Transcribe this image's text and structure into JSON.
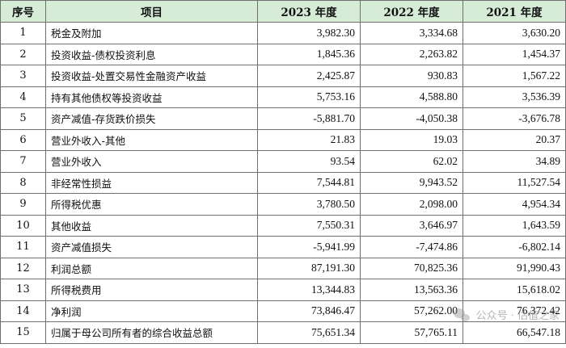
{
  "headers": {
    "seq": "序号",
    "item": "项目",
    "y2023": "2023 年度",
    "y2022": "2022 年度",
    "y2021": "2021 年度"
  },
  "rows": [
    {
      "seq": "1",
      "item": "税金及附加",
      "y2023": "3,982.30",
      "y2022": "3,334.68",
      "y2021": "3,630.20"
    },
    {
      "seq": "2",
      "item": "投资收益-债权投资利息",
      "y2023": "1,845.36",
      "y2022": "2,263.82",
      "y2021": "1,454.37"
    },
    {
      "seq": "3",
      "item": "投资收益-处置交易性金融资产收益",
      "y2023": "2,425.87",
      "y2022": "930.83",
      "y2021": "1,567.22"
    },
    {
      "seq": "4",
      "item": "持有其他债权等投资收益",
      "y2023": "5,753.16",
      "y2022": "4,588.80",
      "y2021": "3,536.39"
    },
    {
      "seq": "5",
      "item": "资产减值-存货跌价损失",
      "y2023": "-5,881.70",
      "y2022": "-4,050.38",
      "y2021": "-3,676.78"
    },
    {
      "seq": "6",
      "item": "营业外收入-其他",
      "y2023": "21.83",
      "y2022": "19.03",
      "y2021": "20.37"
    },
    {
      "seq": "7",
      "item": "营业外收入",
      "y2023": "93.54",
      "y2022": "62.02",
      "y2021": "34.89"
    },
    {
      "seq": "8",
      "item": "非经常性损益",
      "y2023": "7,544.81",
      "y2022": "9,943.52",
      "y2021": "11,527.54"
    },
    {
      "seq": "9",
      "item": "所得税优惠",
      "y2023": "3,780.50",
      "y2022": "2,098.00",
      "y2021": "4,954.34"
    },
    {
      "seq": "10",
      "item": "其他收益",
      "y2023": "7,550.31",
      "y2022": "3,646.97",
      "y2021": "1,643.59"
    },
    {
      "seq": "11",
      "item": "资产减值损失",
      "y2023": "-5,941.99",
      "y2022": "-7,474.86",
      "y2021": "-6,802.14"
    },
    {
      "seq": "12",
      "item": "利润总额",
      "y2023": "87,191.30",
      "y2022": "70,825.36",
      "y2021": "91,990.43"
    },
    {
      "seq": "13",
      "item": "所得税费用",
      "y2023": "13,344.83",
      "y2022": "13,563.36",
      "y2021": "15,618.02"
    },
    {
      "seq": "14",
      "item": "净利润",
      "y2023": "73,846.47",
      "y2022": "57,262.00",
      "y2021": "76,372.42"
    },
    {
      "seq": "15",
      "item": "归属于母公司所有者的综合收益总额",
      "y2023": "75,651.34",
      "y2022": "57,765.11",
      "y2021": "66,547.18"
    }
  ],
  "watermark": {
    "text": "公众号 · 估值之家",
    "icon": "wechat-icon"
  },
  "colors": {
    "header_bg": "#d7ecd7",
    "border": "#6f6f6f"
  }
}
